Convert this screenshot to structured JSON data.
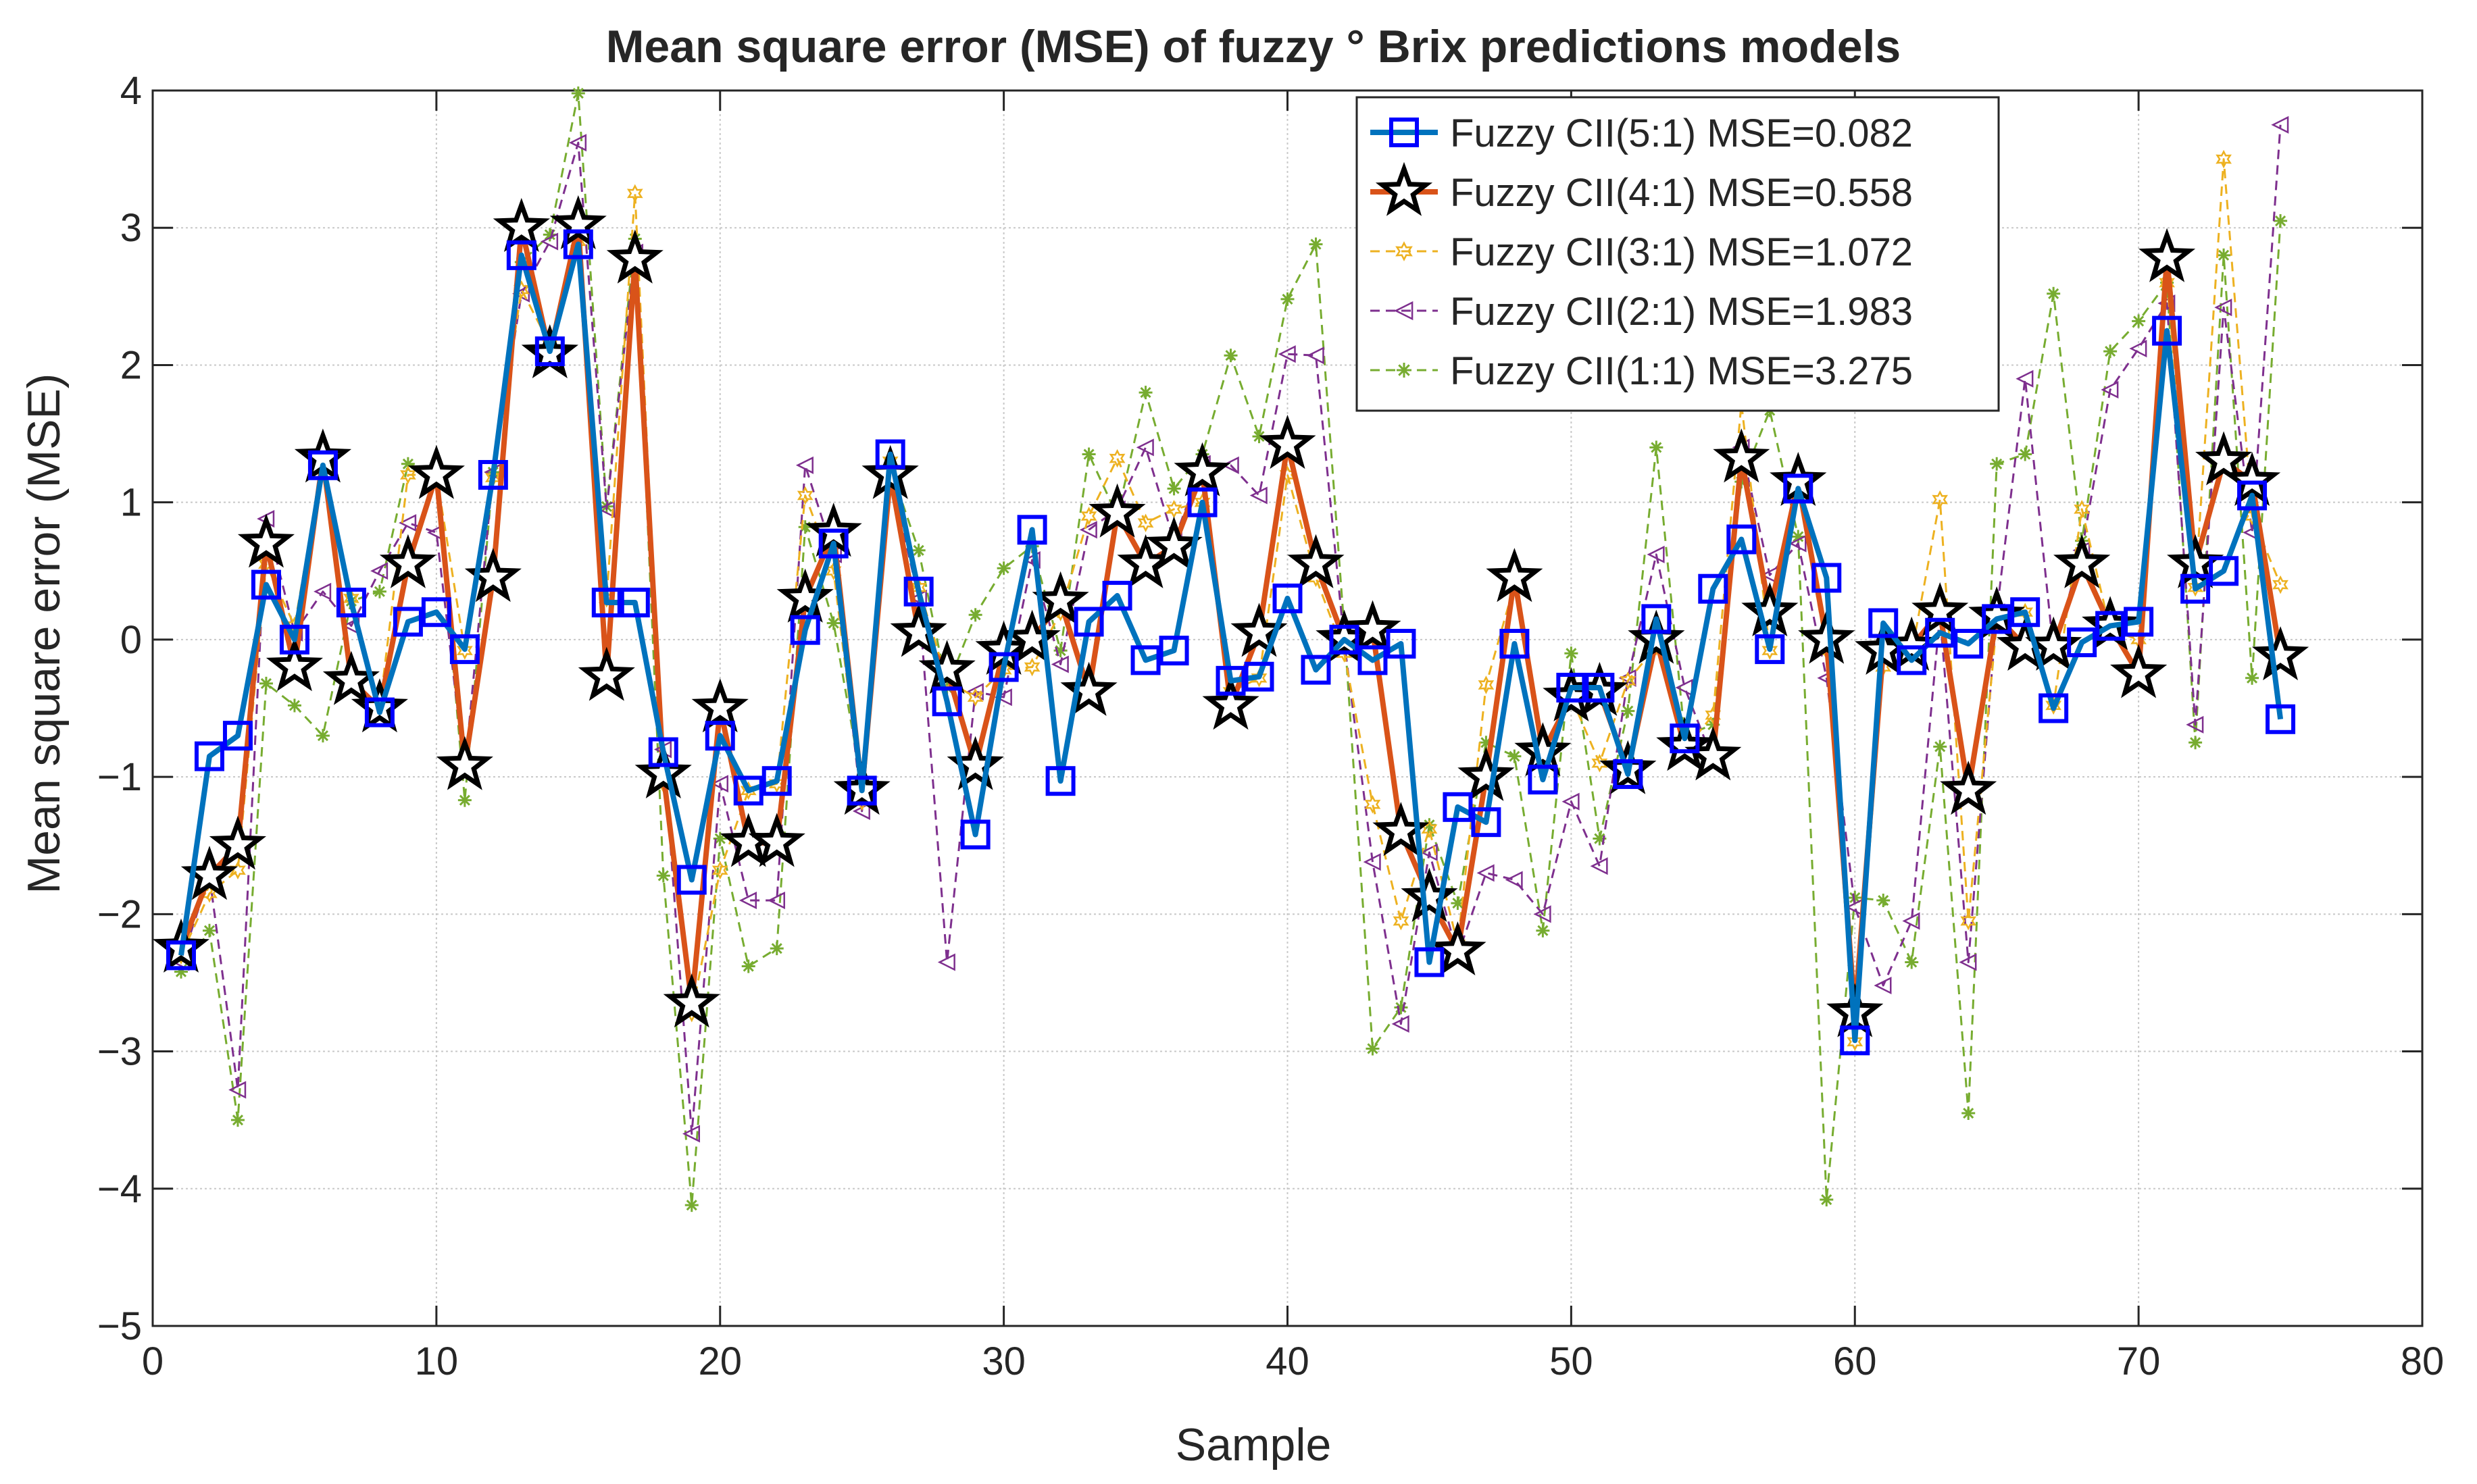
{
  "chart_data": {
    "type": "line",
    "title": "Mean square error (MSE) of fuzzy ° Brix predictions models",
    "xlabel": "Sample",
    "ylabel": "Mean square error (MSE)",
    "xlim": [
      0,
      80
    ],
    "ylim": [
      -5,
      4
    ],
    "xticks": [
      0,
      10,
      20,
      30,
      40,
      50,
      60,
      70,
      80
    ],
    "yticks": [
      -5,
      -4,
      -3,
      -2,
      -1,
      0,
      1,
      2,
      3,
      4
    ],
    "xtick_labels": [
      "0",
      "10",
      "20",
      "30",
      "40",
      "50",
      "60",
      "70",
      "80"
    ],
    "ytick_labels": [
      "−5",
      "−4",
      "−3",
      "−2",
      "−1",
      "0",
      "1",
      "2",
      "3",
      "4"
    ],
    "grid": true,
    "legend_position": "top-right",
    "x": [
      1,
      2,
      3,
      4,
      5,
      6,
      7,
      8,
      9,
      10,
      11,
      12,
      13,
      14,
      15,
      16,
      17,
      18,
      19,
      20,
      21,
      22,
      23,
      24,
      25,
      26,
      27,
      28,
      29,
      30,
      31,
      32,
      33,
      34,
      35,
      36,
      37,
      38,
      39,
      40,
      41,
      42,
      43,
      44,
      45,
      46,
      47,
      48,
      49,
      50,
      51,
      52,
      53,
      54,
      55,
      56,
      57,
      58,
      59,
      60,
      61,
      62,
      63,
      64,
      65,
      66,
      67,
      68,
      69,
      70,
      71,
      72,
      73,
      74,
      75
    ],
    "series": [
      {
        "name": "Fuzzy CII(5:1) MSE=0.082",
        "color": "#0072BD",
        "marker_color": "#0000FF",
        "marker": "square",
        "line_style": "solid",
        "values": [
          -2.3,
          -0.85,
          -0.7,
          0.4,
          0.0,
          1.27,
          0.27,
          -0.53,
          0.13,
          0.2,
          -0.07,
          1.2,
          2.8,
          2.1,
          2.88,
          0.27,
          0.27,
          -0.82,
          -1.75,
          -0.7,
          -1.1,
          -1.03,
          0.07,
          0.7,
          -1.1,
          1.35,
          0.35,
          -0.45,
          -1.42,
          -0.2,
          0.8,
          -1.03,
          0.13,
          0.32,
          -0.15,
          -0.08,
          1.0,
          -0.3,
          -0.27,
          0.3,
          -0.22,
          0.0,
          -0.15,
          -0.03,
          -2.35,
          -1.22,
          -1.33,
          -0.03,
          -1.02,
          -0.35,
          -0.35,
          -0.98,
          0.15,
          -0.72,
          0.37,
          0.73,
          -0.07,
          1.1,
          0.45,
          -2.92,
          0.12,
          -0.15,
          0.05,
          -0.03,
          0.15,
          0.2,
          -0.5,
          -0.02,
          0.1,
          0.13,
          2.25,
          0.37,
          0.5,
          1.05,
          -0.58
        ]
      },
      {
        "name": "Fuzzy CII(4:1) MSE=0.558",
        "color": "#D95319",
        "marker_color": "#000000",
        "marker": "star",
        "line_style": "solid",
        "values": [
          -2.25,
          -1.72,
          -1.5,
          0.7,
          -0.2,
          1.32,
          -0.3,
          -0.5,
          0.55,
          1.2,
          -0.92,
          0.45,
          3.0,
          2.08,
          3.02,
          -0.27,
          2.77,
          -0.98,
          -2.65,
          -0.5,
          -1.48,
          -1.48,
          0.3,
          0.78,
          -1.1,
          1.2,
          0.05,
          -0.22,
          -0.92,
          -0.08,
          0.0,
          0.28,
          -0.38,
          0.92,
          0.55,
          0.68,
          1.22,
          -0.48,
          0.05,
          1.42,
          0.55,
          0.0,
          0.07,
          -1.4,
          -1.88,
          -2.27,
          -1.0,
          0.45,
          -0.82,
          -0.42,
          -0.38,
          -0.95,
          0.0,
          -0.78,
          -0.85,
          1.32,
          0.2,
          1.15,
          0.0,
          -2.72,
          -0.08,
          -0.05,
          0.2,
          -1.1,
          0.17,
          -0.05,
          -0.05,
          0.55,
          0.1,
          -0.25,
          2.78,
          0.55,
          1.3,
          1.15,
          -0.12
        ]
      },
      {
        "name": "Fuzzy CII(3:1) MSE=1.072",
        "color": "#EDB120",
        "marker_color": "#EDB120",
        "marker": "hexagram",
        "line_style": "dashed",
        "values": [
          -2.3,
          -1.85,
          -1.68,
          0.55,
          0.1,
          1.3,
          0.3,
          -0.5,
          1.2,
          1.2,
          -0.08,
          1.18,
          2.55,
          2.15,
          2.9,
          0.3,
          3.25,
          -1.05,
          -2.72,
          -1.68,
          -1.1,
          -1.05,
          1.05,
          0.5,
          -1.18,
          1.3,
          0.38,
          -0.3,
          -0.42,
          -0.22,
          -0.2,
          0.2,
          0.9,
          1.32,
          0.85,
          0.95,
          1.0,
          -0.38,
          -0.28,
          1.2,
          0.45,
          -0.1,
          -1.2,
          -2.05,
          -1.38,
          -2.22,
          -0.33,
          0.4,
          -0.88,
          -0.42,
          -0.9,
          -0.3,
          -0.05,
          -0.8,
          -0.55,
          1.72,
          -0.08,
          1.1,
          -0.08,
          -2.93,
          -0.2,
          -0.1,
          1.02,
          -2.05,
          0.12,
          0.2,
          -0.48,
          0.95,
          0.07,
          0.0,
          2.6,
          0.38,
          3.5,
          0.9,
          0.4
        ]
      },
      {
        "name": "Fuzzy CII(2:1) MSE=1.983",
        "color": "#7E2F8E",
        "marker_color": "#7E2F8E",
        "marker": "triangle-left",
        "line_style": "dashed",
        "values": [
          -2.35,
          -1.72,
          -3.28,
          0.88,
          0.05,
          0.35,
          0.1,
          0.5,
          0.85,
          0.78,
          -0.95,
          1.22,
          2.52,
          2.9,
          3.62,
          0.95,
          2.82,
          -0.8,
          -3.6,
          -1.05,
          -1.9,
          -1.9,
          1.27,
          0.62,
          -1.25,
          1.2,
          0.3,
          -2.35,
          -0.38,
          -0.42,
          0.58,
          -0.18,
          0.8,
          0.95,
          1.4,
          0.72,
          1.28,
          1.27,
          1.05,
          2.08,
          2.07,
          -0.02,
          -1.62,
          -2.8,
          -1.55,
          -2.3,
          -1.7,
          -1.75,
          -2.0,
          -1.18,
          -1.65,
          -0.28,
          0.62,
          -0.35,
          -0.88,
          1.4,
          0.47,
          0.7,
          -0.28,
          -1.95,
          -2.52,
          -2.05,
          0.18,
          -2.35,
          0.2,
          1.9,
          -0.08,
          0.65,
          1.82,
          2.12,
          2.45,
          -0.62,
          2.42,
          0.78,
          3.75
        ]
      },
      {
        "name": "Fuzzy CII(1:1) MSE=3.275",
        "color": "#77AC30",
        "marker_color": "#77AC30",
        "marker": "asterisk",
        "line_style": "dashed",
        "values": [
          -2.42,
          -2.12,
          -3.5,
          -0.32,
          -0.48,
          -0.7,
          0.28,
          0.35,
          1.28,
          1.2,
          -1.17,
          1.22,
          2.75,
          2.95,
          3.98,
          0.97,
          2.92,
          -1.72,
          -4.12,
          -1.45,
          -2.38,
          -2.25,
          0.82,
          0.12,
          -1.05,
          1.25,
          0.65,
          -0.35,
          0.18,
          0.52,
          0.68,
          -0.08,
          1.35,
          0.9,
          1.8,
          1.1,
          1.35,
          2.07,
          1.48,
          2.48,
          2.88,
          0.08,
          -2.98,
          -2.68,
          -1.35,
          -1.92,
          -0.75,
          -0.85,
          -2.12,
          -0.1,
          -1.45,
          -0.52,
          1.4,
          -0.7,
          -0.62,
          1.15,
          1.67,
          0.75,
          -4.08,
          -1.88,
          -1.9,
          -2.35,
          -0.78,
          -3.45,
          1.28,
          1.35,
          2.52,
          0.72,
          2.1,
          2.32,
          2.6,
          -0.75,
          2.8,
          -0.28,
          3.05
        ]
      }
    ]
  }
}
